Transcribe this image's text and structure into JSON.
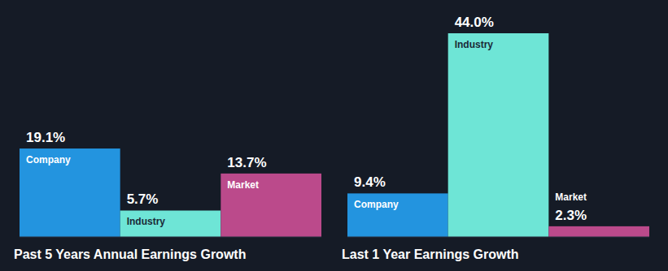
{
  "chart_data": [
    {
      "type": "bar",
      "title": "Past 5 Years Annual Earnings Growth",
      "categories": [
        "Company",
        "Industry",
        "Market"
      ],
      "values": [
        19.1,
        5.7,
        13.7
      ],
      "value_labels": [
        "19.1%",
        "5.7%",
        "13.7%"
      ],
      "colors": [
        "#2394df",
        "#6ee5d6",
        "#bb4a8b"
      ],
      "ylim": [
        0,
        44
      ],
      "data_labels": true,
      "tick_labels": false
    },
    {
      "type": "bar",
      "title": "Last 1 Year Earnings Growth",
      "categories": [
        "Company",
        "Industry",
        "Market"
      ],
      "values": [
        9.4,
        44.0,
        2.3
      ],
      "value_labels": [
        "9.4%",
        "44.0%",
        "2.3%"
      ],
      "colors": [
        "#2394df",
        "#6ee5d6",
        "#bb4a8b"
      ],
      "ylim": [
        0,
        44
      ],
      "data_labels": true,
      "tick_labels": false
    }
  ]
}
